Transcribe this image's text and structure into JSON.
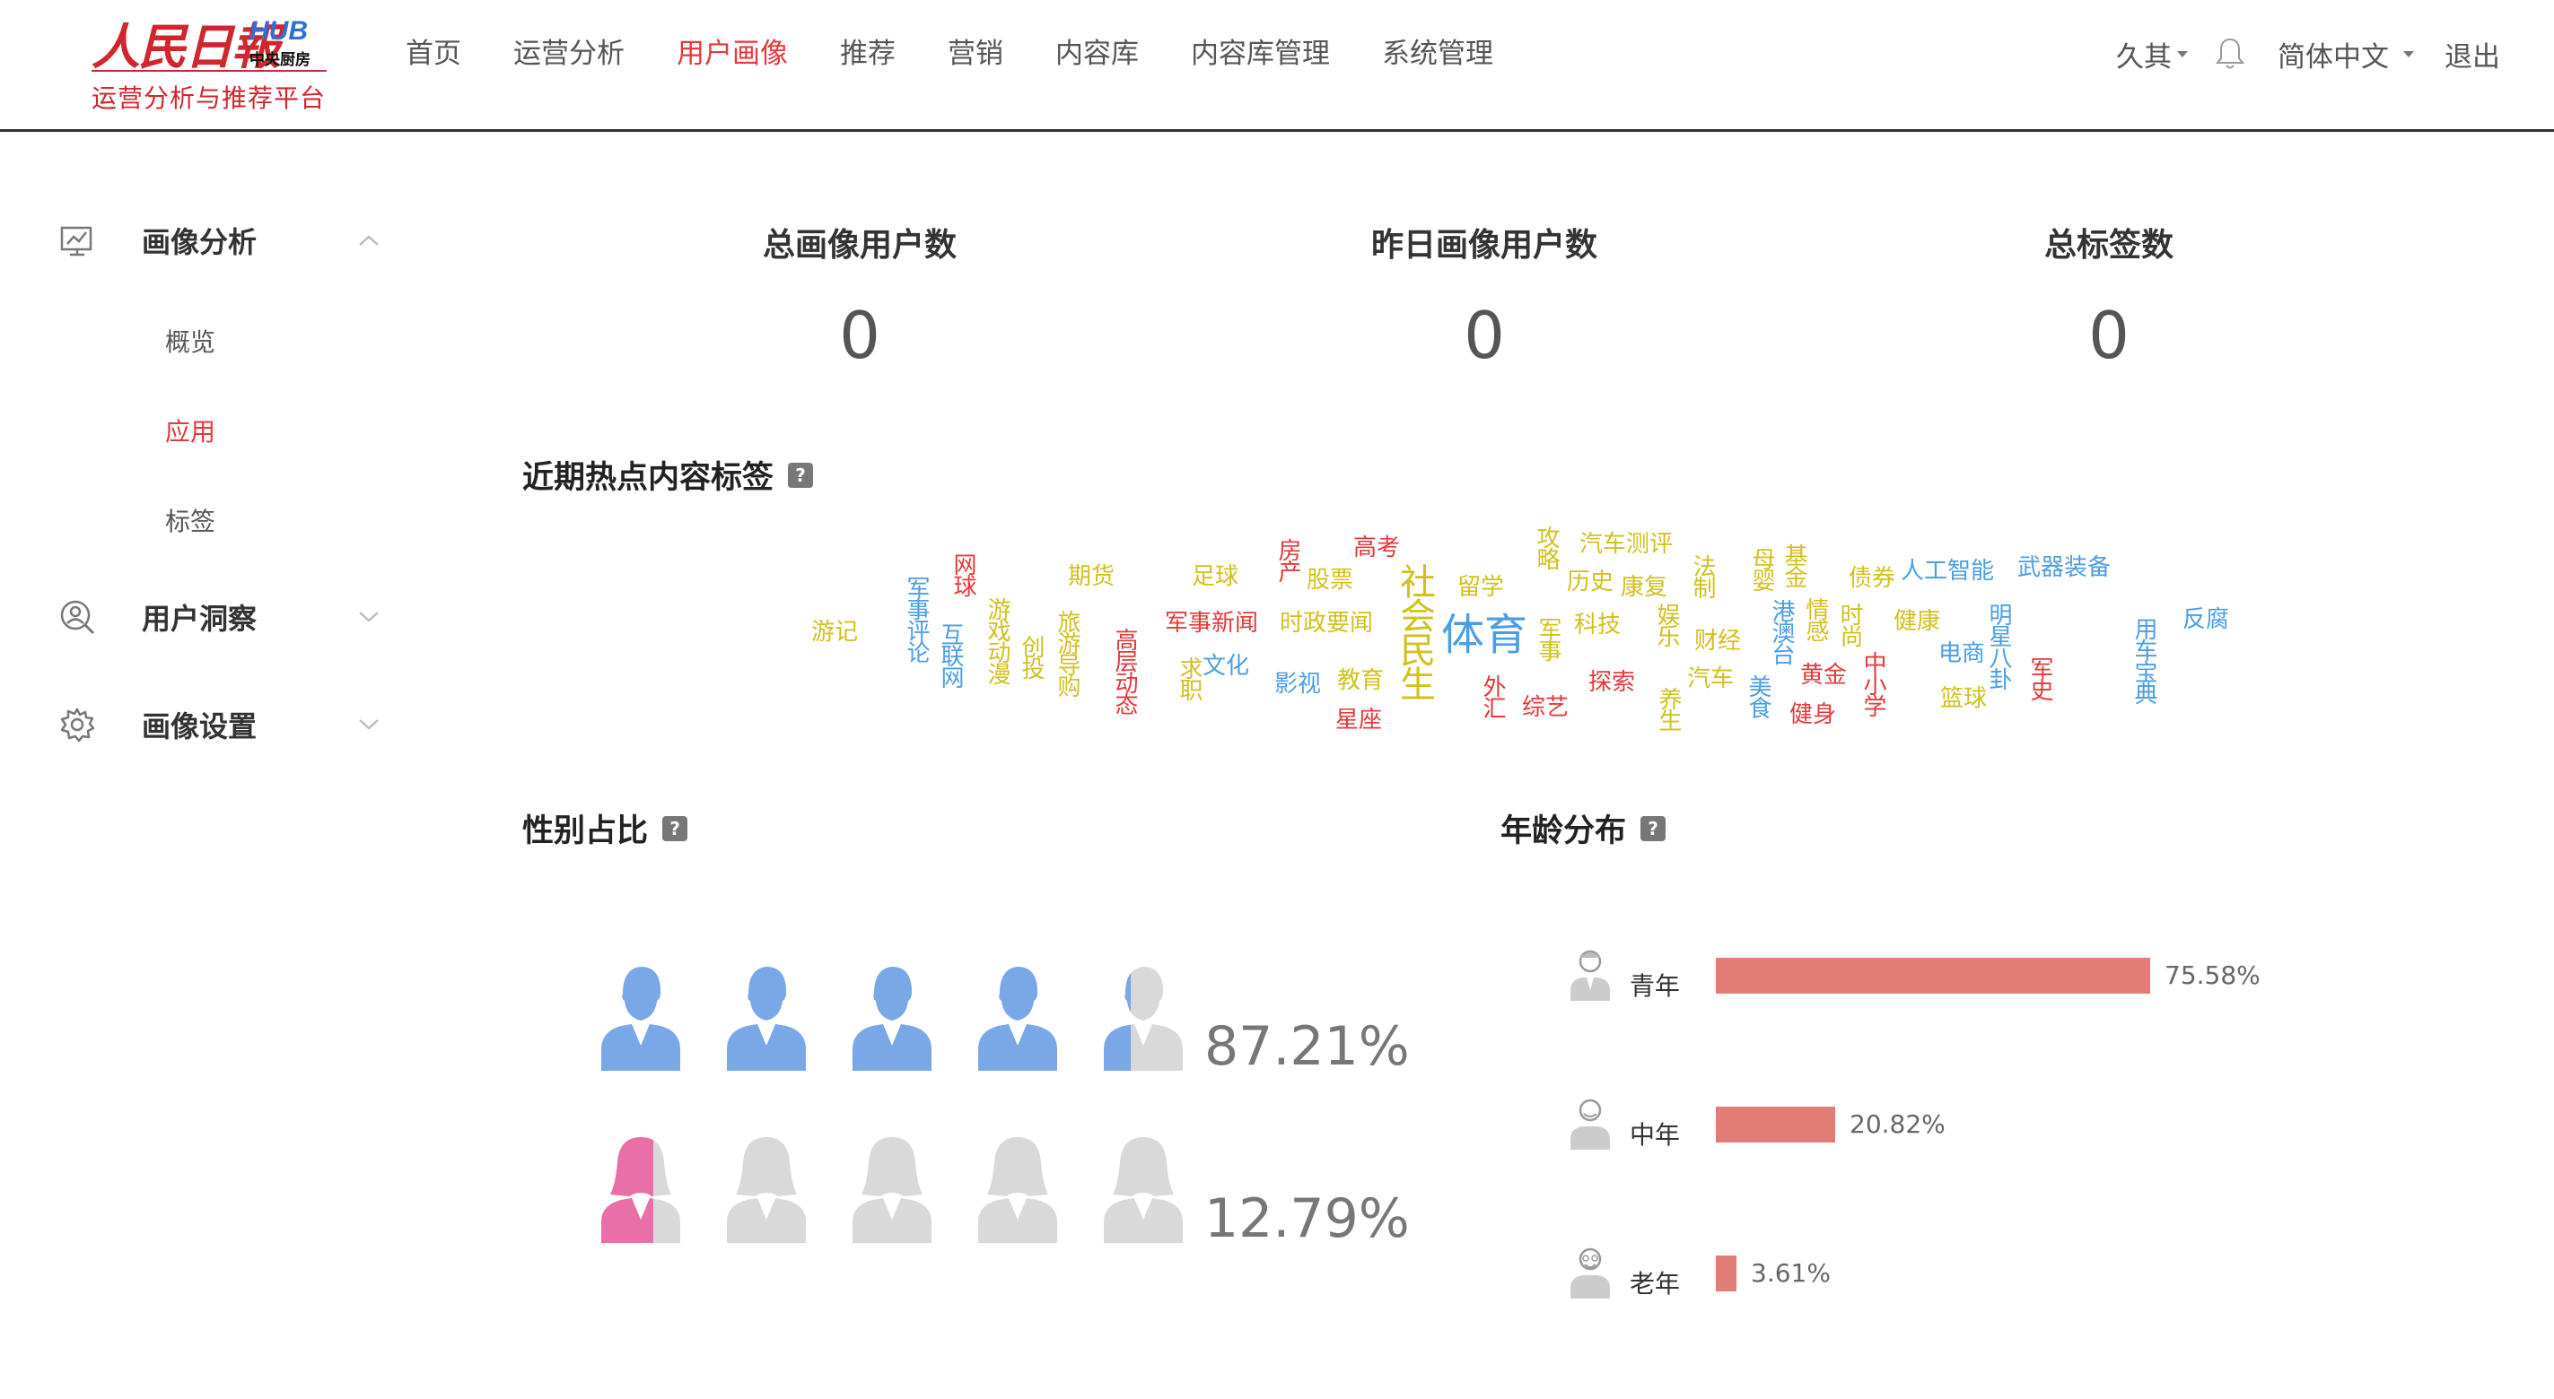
{
  "brand": {
    "name": "人民日報",
    "hub": "HUB",
    "kitchen": "中央厨房",
    "subtitle": "运营分析与推荐平台"
  },
  "nav": {
    "items": [
      "首页",
      "运营分析",
      "用户画像",
      "推荐",
      "营销",
      "内容库",
      "内容库管理",
      "系统管理"
    ],
    "active": "用户画像"
  },
  "header_right": {
    "user": "久其",
    "language": "简体中文",
    "logout": "退出"
  },
  "sidebar": {
    "groups": [
      {
        "label": "画像分析",
        "icon": "monitor-chart-icon",
        "expanded": true,
        "items": [
          "概览",
          "应用",
          "标签"
        ],
        "active_item": "应用"
      },
      {
        "label": "用户洞察",
        "icon": "user-search-icon",
        "expanded": false
      },
      {
        "label": "画像设置",
        "icon": "gear-icon",
        "expanded": false
      }
    ]
  },
  "stats": [
    {
      "label": "总画像用户数",
      "value": "0"
    },
    {
      "label": "昨日画像用户数",
      "value": "0"
    },
    {
      "label": "总标签数",
      "value": "0"
    }
  ],
  "hot_tags": {
    "title": "近期热点内容标签",
    "help": "?",
    "words": [
      "游记",
      "军事评论",
      "网球",
      "互联网",
      "游戏动漫",
      "创投",
      "旅游导购",
      "期货",
      "高层动态",
      "足球",
      "军事新闻",
      "求职",
      "房产",
      "股票",
      "时政要闻",
      "文化",
      "影视",
      "高考",
      "教育",
      "星座",
      "社会民生",
      "体育",
      "留学",
      "外汇",
      "攻略",
      "历史",
      "军事",
      "综艺",
      "汽车测评",
      "科技",
      "康复",
      "探索",
      "法制",
      "娱乐",
      "财经",
      "养生",
      "汽车",
      "母婴",
      "基金",
      "港澳台",
      "美食",
      "情感",
      "时尚",
      "黄金",
      "健身",
      "债券",
      "中小学",
      "人工智能",
      "健康",
      "电商",
      "明星八卦",
      "篮球",
      "军史",
      "武器装备",
      "用车宝典",
      "反腐"
    ]
  },
  "gender": {
    "title": "性别占比",
    "help": "?",
    "male_pct": "87.21%",
    "female_pct": "12.79%",
    "male_fraction": 0.8721,
    "female_fraction": 0.1279,
    "male_color": "#7aa7e6",
    "female_color": "#e86fa7",
    "empty_color": "#d9d9d9"
  },
  "age": {
    "title": "年龄分布",
    "help": "?",
    "bar_color": "#e27c76",
    "groups": [
      {
        "label": "青年",
        "pct": "75.58%",
        "value": 75.58
      },
      {
        "label": "中年",
        "pct": "20.82%",
        "value": 20.82
      },
      {
        "label": "老年",
        "pct": "3.61%",
        "value": 3.61
      }
    ]
  }
}
